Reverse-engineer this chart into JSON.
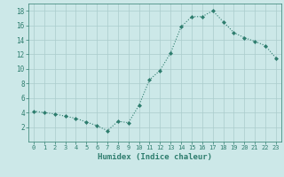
{
  "x": [
    0,
    1,
    2,
    3,
    4,
    5,
    6,
    7,
    8,
    9,
    10,
    11,
    12,
    13,
    14,
    15,
    16,
    17,
    18,
    19,
    20,
    21,
    22,
    23
  ],
  "y": [
    4.2,
    4.0,
    3.8,
    3.5,
    3.2,
    2.7,
    2.2,
    1.5,
    2.8,
    2.6,
    5.0,
    8.5,
    9.8,
    12.2,
    15.8,
    17.2,
    17.2,
    18.0,
    16.5,
    15.0,
    14.3,
    13.8,
    13.2,
    11.5
  ],
  "xlabel": "Humidex (Indice chaleur)",
  "ylabel": "",
  "xlim": [
    -0.5,
    23.5
  ],
  "ylim": [
    0,
    19
  ],
  "yticks": [
    2,
    4,
    6,
    8,
    10,
    12,
    14,
    16,
    18
  ],
  "xticks": [
    0,
    1,
    2,
    3,
    4,
    5,
    6,
    7,
    8,
    9,
    10,
    11,
    12,
    13,
    14,
    15,
    16,
    17,
    18,
    19,
    20,
    21,
    22,
    23
  ],
  "line_color": "#2e7d6e",
  "marker": "D",
  "marker_size": 2.0,
  "bg_color": "#cce8e8",
  "grid_color": "#aacccc",
  "axis_color": "#2e7d6e",
  "tick_color": "#2e7d6e",
  "label_color": "#2e7d6e",
  "font_family": "monospace",
  "xlabel_fontsize": 6.5,
  "tick_fontsize_x": 5.0,
  "tick_fontsize_y": 5.5
}
